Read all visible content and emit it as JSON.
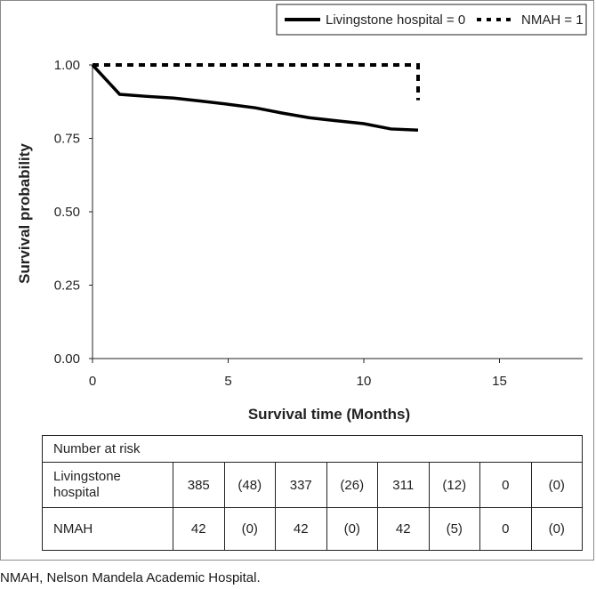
{
  "chart_data": {
    "type": "line",
    "title": "",
    "xlabel": "Survival time (Months)",
    "ylabel": "Survival probability",
    "xlim": [
      0,
      18
    ],
    "ylim": [
      0,
      1
    ],
    "xticks": [
      0,
      5,
      10,
      15
    ],
    "yticks": [
      0,
      0.25,
      0.5,
      0.75,
      1
    ],
    "ytick_labels": [
      "0.00",
      "0.25",
      "0.50",
      "0.75",
      "1.00"
    ],
    "legend_position": "top-right",
    "series": [
      {
        "name": "Livingstone hospital = 0",
        "style": "solid",
        "x": [
          0,
          1,
          2,
          3,
          4,
          5,
          6,
          7,
          8,
          9,
          10,
          11,
          12
        ],
        "y": [
          1.0,
          0.9,
          0.893,
          0.887,
          0.877,
          0.866,
          0.854,
          0.836,
          0.82,
          0.81,
          0.8,
          0.782,
          0.778
        ]
      },
      {
        "name": "NMAH = 1",
        "style": "dashed",
        "x": [
          0,
          12,
          12
        ],
        "y": [
          1.0,
          1.0,
          0.88
        ]
      }
    ]
  },
  "risk_table": {
    "header": "Number at risk",
    "rows": [
      {
        "label": "Livingstone hospital",
        "values": [
          "385",
          "(48)",
          "337",
          "(26)",
          "311",
          "(12)",
          "0",
          "(0)"
        ]
      },
      {
        "label": "NMAH",
        "values": [
          "42",
          "(0)",
          "42",
          "(0)",
          "42",
          "(5)",
          "0",
          "(0)"
        ]
      }
    ]
  },
  "caption": "NMAH, Nelson Mandela Academic Hospital.",
  "colors": {
    "line": "#000000",
    "axis": "#222222",
    "frame": "#8a8a8a"
  }
}
